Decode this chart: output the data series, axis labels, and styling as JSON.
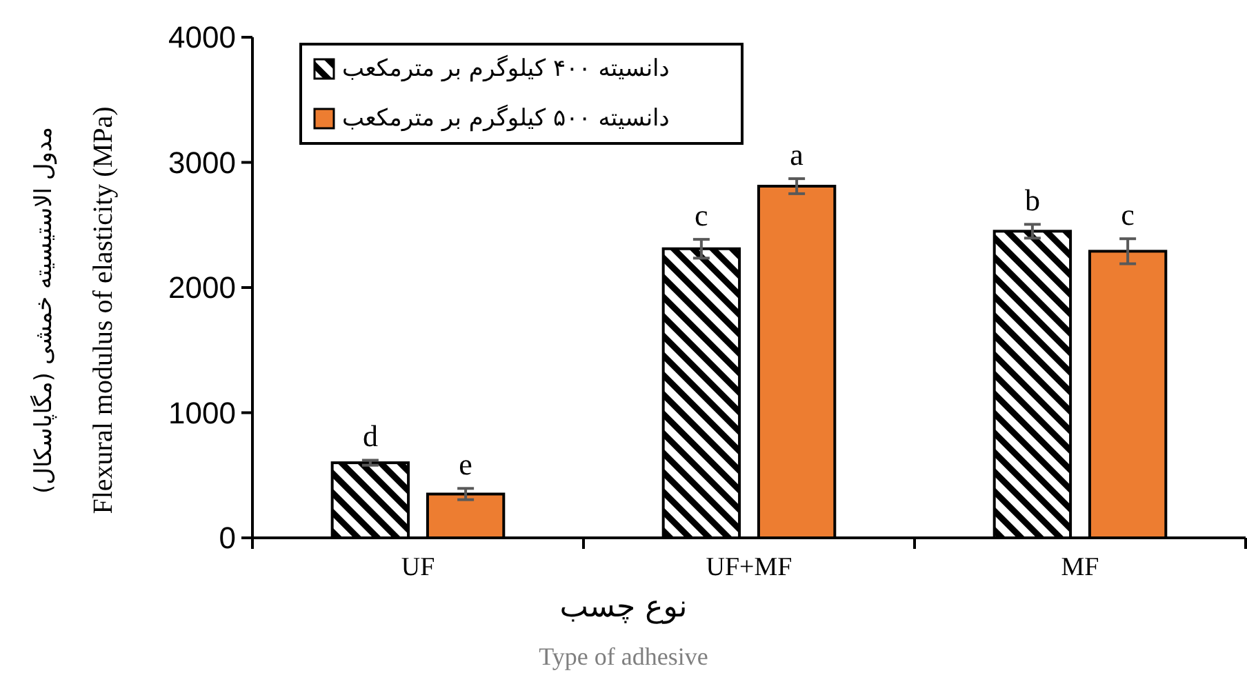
{
  "chart_data": {
    "type": "bar",
    "categories": [
      "UF",
      "UF+MF",
      "MF"
    ],
    "series": [
      {
        "name": "دانسیته ۴۰۰ کیلوگرم بر مترمکعب",
        "color": "#000000",
        "values": [
          600,
          2310,
          2450
        ],
        "errors": [
          20,
          75,
          55
        ],
        "value_labels": [
          "d",
          "c",
          "b"
        ]
      },
      {
        "name": "دانسیته ۵۰۰ کیلوگرم بر مترمکعب",
        "color": "#ed7d31",
        "values": [
          350,
          2810,
          2290
        ],
        "errors": [
          45,
          60,
          100
        ],
        "value_labels": [
          "e",
          "a",
          "c"
        ]
      }
    ],
    "ylim": [
      0,
      4000
    ],
    "yticks": [
      0,
      1000,
      2000,
      3000,
      4000
    ],
    "ylabel": "مدول الاستیسیته خمشی (مگاپاسکال)\nFlexural modulus of elasticity (MPa)",
    "xlabel": "نوع چسب\nType of adhesive",
    "legend": "top left",
    "grid": false
  }
}
